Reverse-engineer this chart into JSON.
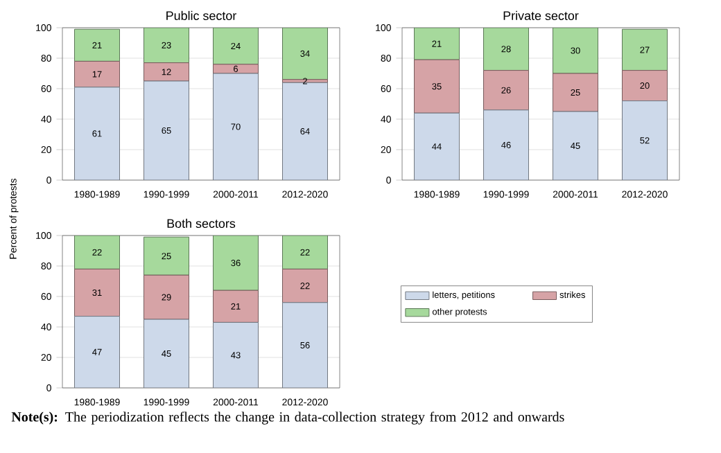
{
  "chart_data": [
    {
      "type": "bar",
      "stacked": true,
      "title": "Public sector",
      "ylabel": "Percent of protests",
      "categories": [
        "1980-1989",
        "1990-1999",
        "2000-2011",
        "2012-2020"
      ],
      "ylim": [
        0,
        100
      ],
      "yticks": [
        0,
        20,
        40,
        60,
        80,
        100
      ],
      "grid": "y",
      "data_labels": true,
      "series": [
        {
          "color": "#cdd9ea",
          "values": [
            61,
            65,
            70,
            64
          ]
        },
        {
          "color": "#d6a3a6",
          "values": [
            17,
            12,
            6,
            2
          ]
        },
        {
          "color": "#a6d99c",
          "values": [
            21,
            23,
            24,
            34
          ]
        }
      ]
    },
    {
      "type": "bar",
      "stacked": true,
      "title": "Private sector",
      "categories": [
        "1980-1989",
        "1990-1999",
        "2000-2011",
        "2012-2020"
      ],
      "ylim": [
        0,
        100
      ],
      "yticks": [
        0,
        20,
        40,
        60,
        80,
        100
      ],
      "grid": "y",
      "data_labels": true,
      "series": [
        {
          "color": "#cdd9ea",
          "values": [
            44,
            46,
            45,
            52
          ]
        },
        {
          "color": "#d6a3a6",
          "values": [
            35,
            26,
            25,
            20
          ]
        },
        {
          "color": "#a6d99c",
          "values": [
            21,
            28,
            30,
            27
          ]
        }
      ]
    },
    {
      "type": "bar",
      "stacked": true,
      "title": "Both sectors",
      "categories": [
        "1980-1989",
        "1990-1999",
        "2000-2011",
        "2012-2020"
      ],
      "ylim": [
        0,
        100
      ],
      "yticks": [
        0,
        20,
        40,
        60,
        80,
        100
      ],
      "grid": "y",
      "data_labels": true,
      "legend": "right",
      "annotations": [
        "**Note(s):** The periodization reflects the change in data-collection strategy from 2012 and onwards"
      ],
      "series": [
        {
          "name": "letters, petitions",
          "color": "#cdd9ea",
          "values": [
            47,
            45,
            43,
            56
          ]
        },
        {
          "name": "strikes",
          "color": "#d6a3a6",
          "values": [
            31,
            29,
            21,
            22
          ]
        },
        {
          "name": "other protests",
          "color": "#a6d99c",
          "values": [
            22,
            25,
            36,
            22
          ]
        }
      ]
    }
  ]
}
